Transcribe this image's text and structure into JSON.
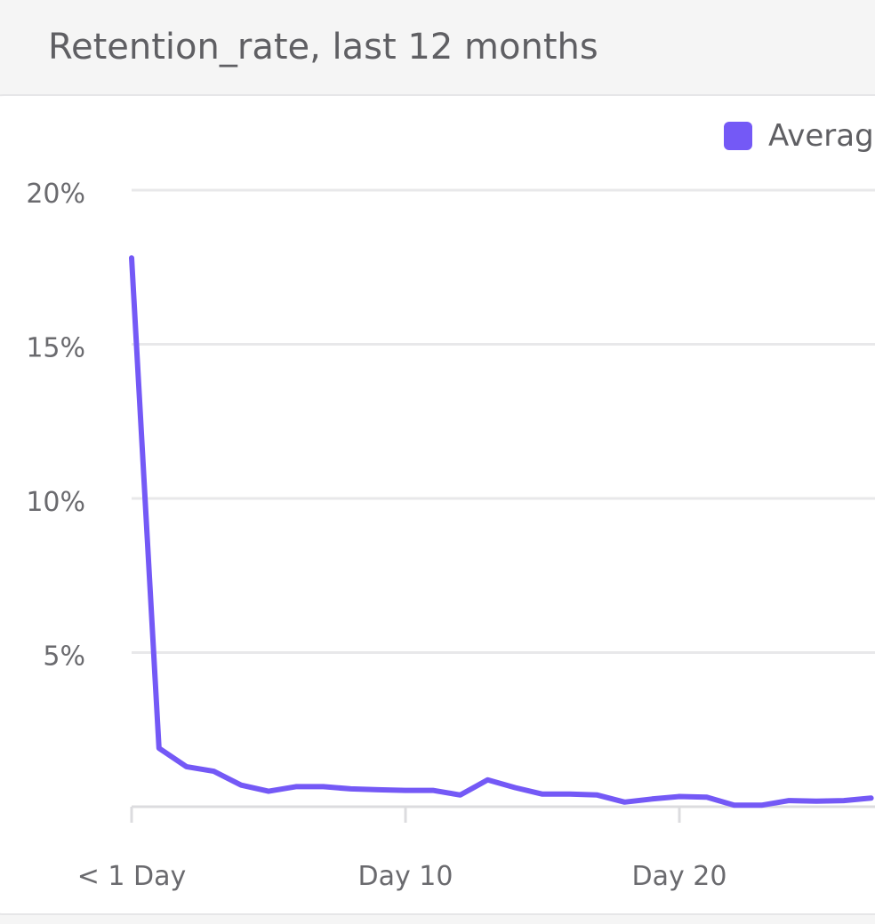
{
  "page": {
    "title": "Retention_rate, last 12 months"
  },
  "legend": {
    "items": [
      {
        "label": "Averag",
        "color": "#7459f6"
      }
    ]
  },
  "chart_data": {
    "type": "line",
    "title": "Retention_rate, last 12 months",
    "xlabel": "",
    "ylabel": "",
    "x": [
      "< 1 Day",
      "Day 1",
      "Day 2",
      "Day 3",
      "Day 4",
      "Day 5",
      "Day 6",
      "Day 7",
      "Day 8",
      "Day 9",
      "Day 10",
      "Day 11",
      "Day 12",
      "Day 13",
      "Day 14",
      "Day 15",
      "Day 16",
      "Day 17",
      "Day 18",
      "Day 19",
      "Day 20",
      "Day 21",
      "Day 22",
      "Day 23",
      "Day 24",
      "Day 25",
      "Day 26",
      "Day 27"
    ],
    "series": [
      {
        "color": "#7459f6",
        "values": [
          17.8,
          1.9,
          1.3,
          1.15,
          0.7,
          0.5,
          0.65,
          0.65,
          0.58,
          0.55,
          0.53,
          0.53,
          0.38,
          0.87,
          0.62,
          0.41,
          0.41,
          0.38,
          0.15,
          0.25,
          0.33,
          0.31,
          0.05,
          0.05,
          0.2,
          0.18,
          0.2,
          0.28
        ]
      }
    ],
    "yticks": [
      {
        "value": 20,
        "label": "20%"
      },
      {
        "value": 15,
        "label": "15%"
      },
      {
        "value": 10,
        "label": "10%"
      },
      {
        "value": 5,
        "label": "5%"
      }
    ],
    "xticks": [
      {
        "value": 0,
        "label": "< 1 Day"
      },
      {
        "value": 10,
        "label": "Day 10"
      },
      {
        "value": 20,
        "label": "Day 20"
      }
    ],
    "ylim": [
      0,
      20
    ],
    "xlim": [
      0,
      30
    ],
    "grid": true,
    "legend_position": "top-right"
  }
}
